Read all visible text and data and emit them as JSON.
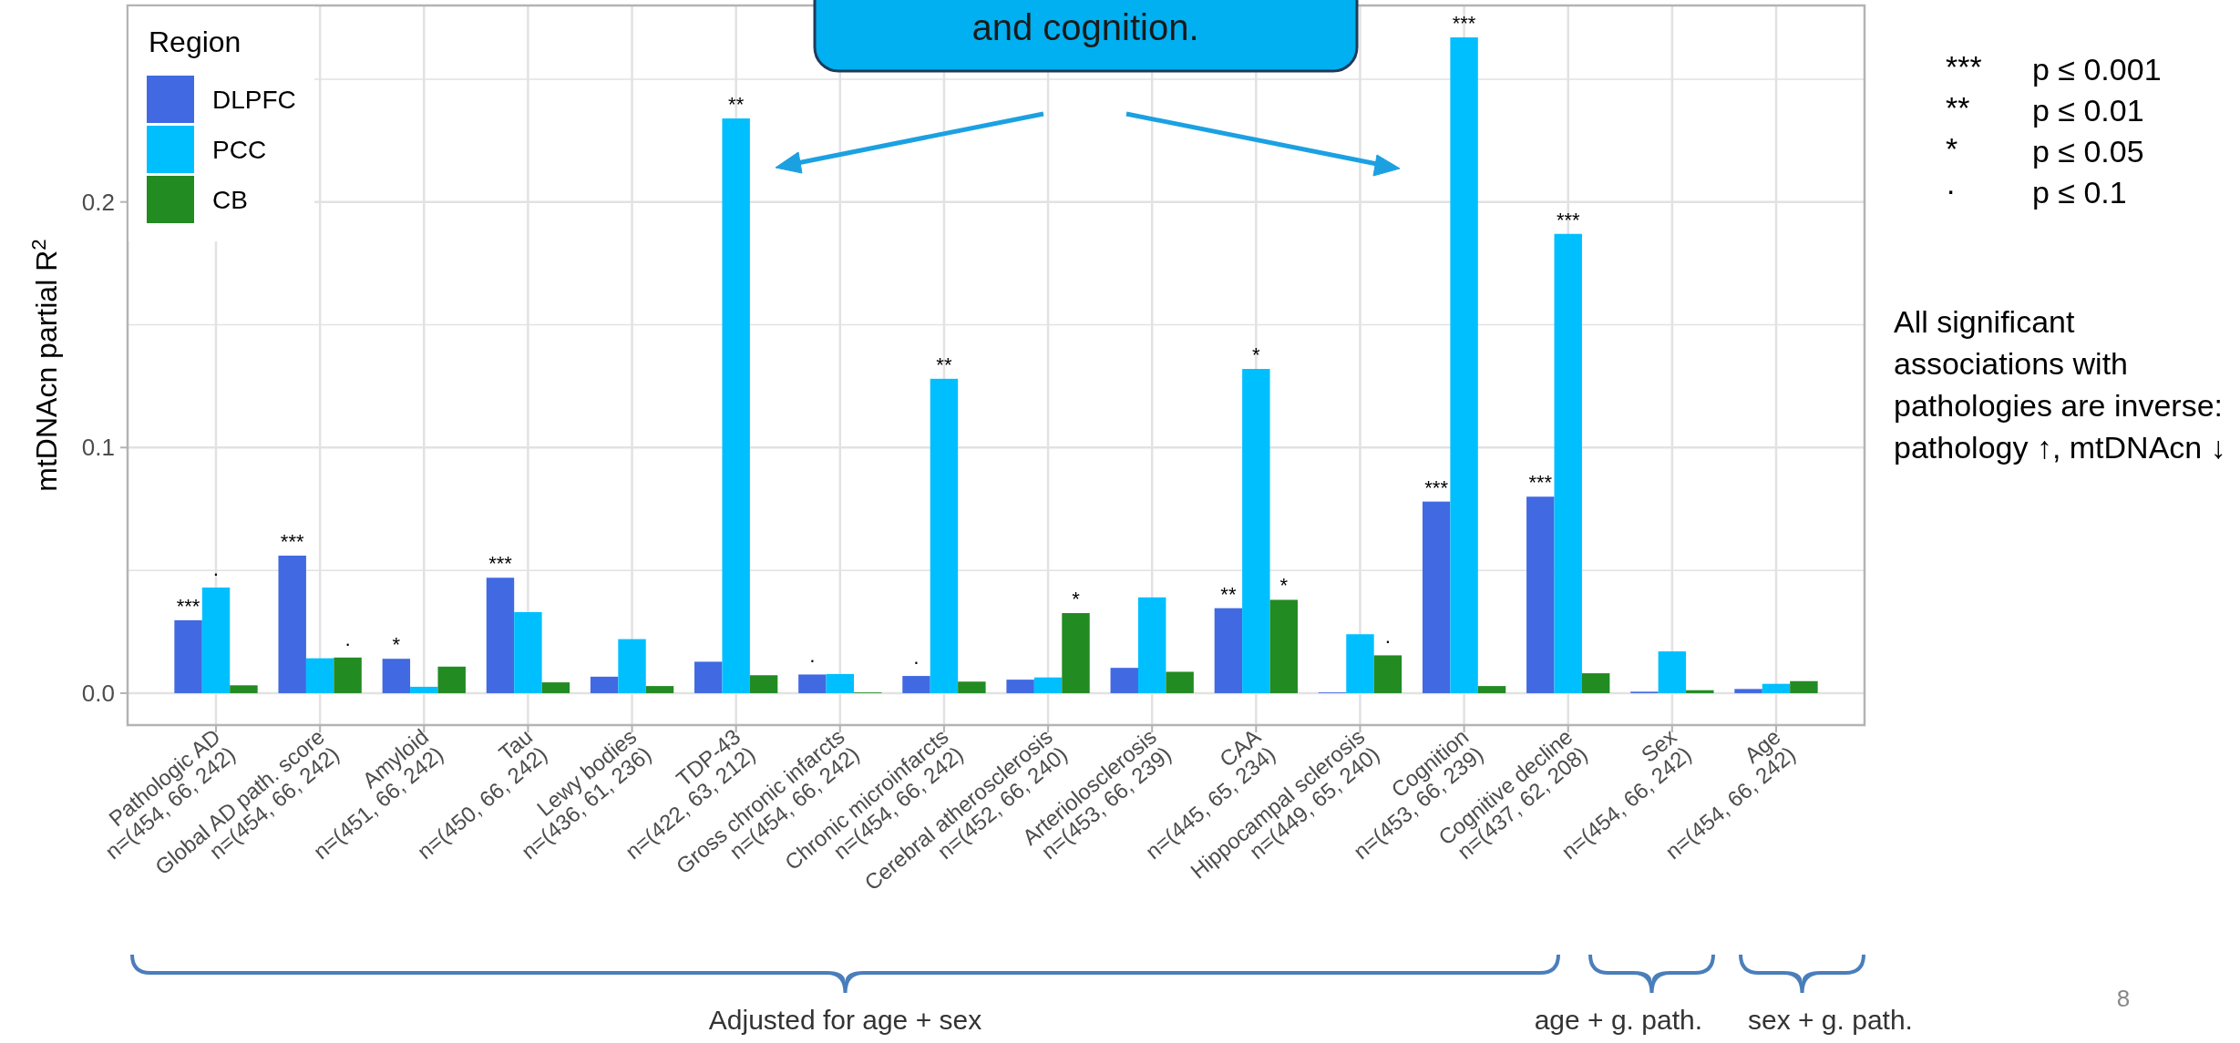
{
  "chart_data": {
    "type": "bar",
    "categories": [
      "Pathologic AD\nn=(454, 66, 242)",
      "Global AD path. score\nn=(454, 66, 242)",
      "Amyloid\nn=(451, 66, 242)",
      "Tau\nn=(450, 66, 242)",
      "Lewy bodies\nn=(436, 61, 236)",
      "TDP-43\nn=(422, 63, 212)",
      "Gross chronic infarcts\nn=(454, 66, 242)",
      "Chronic microinfarcts\nn=(454, 66, 242)",
      "Cerebral atherosclerosis\nn=(452, 66, 240)",
      "Arteriolosclerosis\nn=(453, 66, 239)",
      "CAA\nn=(445, 65, 234)",
      "Hippocampal sclerosis\nn=(449, 65, 240)",
      "Cognition\nn=(453, 66, 239)",
      "Cognitive decline\nn=(437, 62, 208)",
      "Sex\nn=(454, 66, 242)",
      "Age\nn=(454, 66, 242)"
    ],
    "series": [
      {
        "name": "DLPFC",
        "color": "#4169e1",
        "values": [
          0.0297,
          0.056,
          0.014,
          0.047,
          0.0067,
          0.0128,
          0.0076,
          0.007,
          0.0055,
          0.0103,
          0.0346,
          0.0003,
          0.078,
          0.08,
          0.0006,
          0.0017
        ],
        "value_labels": [
          "***",
          "***",
          "*",
          "***",
          null,
          null,
          "·",
          "·",
          null,
          null,
          "**",
          null,
          "***",
          "***",
          null,
          null
        ]
      },
      {
        "name": "PCC",
        "color": "#00bfff",
        "values": [
          0.043,
          0.0142,
          0.0026,
          0.033,
          0.022,
          0.234,
          0.0078,
          0.128,
          0.0064,
          0.039,
          0.132,
          0.024,
          0.267,
          0.187,
          0.017,
          0.0038
        ],
        "value_labels": [
          "·",
          null,
          null,
          null,
          null,
          "**",
          null,
          "**",
          null,
          null,
          "*",
          null,
          "***",
          "***",
          null,
          null
        ]
      },
      {
        "name": "CB",
        "color": "#228b22",
        "values": [
          0.0032,
          0.0145,
          0.0108,
          0.0044,
          0.0029,
          0.0073,
          0.0003,
          0.0047,
          0.0326,
          0.0087,
          0.038,
          0.0154,
          0.0029,
          0.0081,
          0.0012,
          0.0049
        ],
        "value_labels": [
          null,
          "·",
          null,
          null,
          null,
          null,
          null,
          null,
          "*",
          null,
          "*",
          "·",
          null,
          null,
          null,
          null
        ]
      }
    ],
    "ylabel": "mtDNAcn partial R$^{2}$",
    "legend_title": "Region",
    "legend": "top left",
    "ylim": [
      -0.013,
      0.28
    ],
    "yticks": [
      {
        "value": 0,
        "label": "0.0"
      },
      {
        "value": 0.05,
        "label": null
      },
      0.1,
      {
        "value": 0.15,
        "label": null
      },
      0.2,
      {
        "value": 0.25,
        "label": null
      }
    ],
    "grid": true,
    "annotations": [
      "and cognition.",
      "***",
      "p ≤ 0.001",
      "**",
      "p ≤ 0.01",
      "*",
      "p ≤ 0.05",
      "·",
      "p ≤ 0.1",
      "All significant associations with pathologies are inverse: pathology ↑, mtDNAcn ↓",
      "Adjusted for age + sex",
      "age + g. path.",
      "sex + g. path.",
      "8"
    ]
  }
}
